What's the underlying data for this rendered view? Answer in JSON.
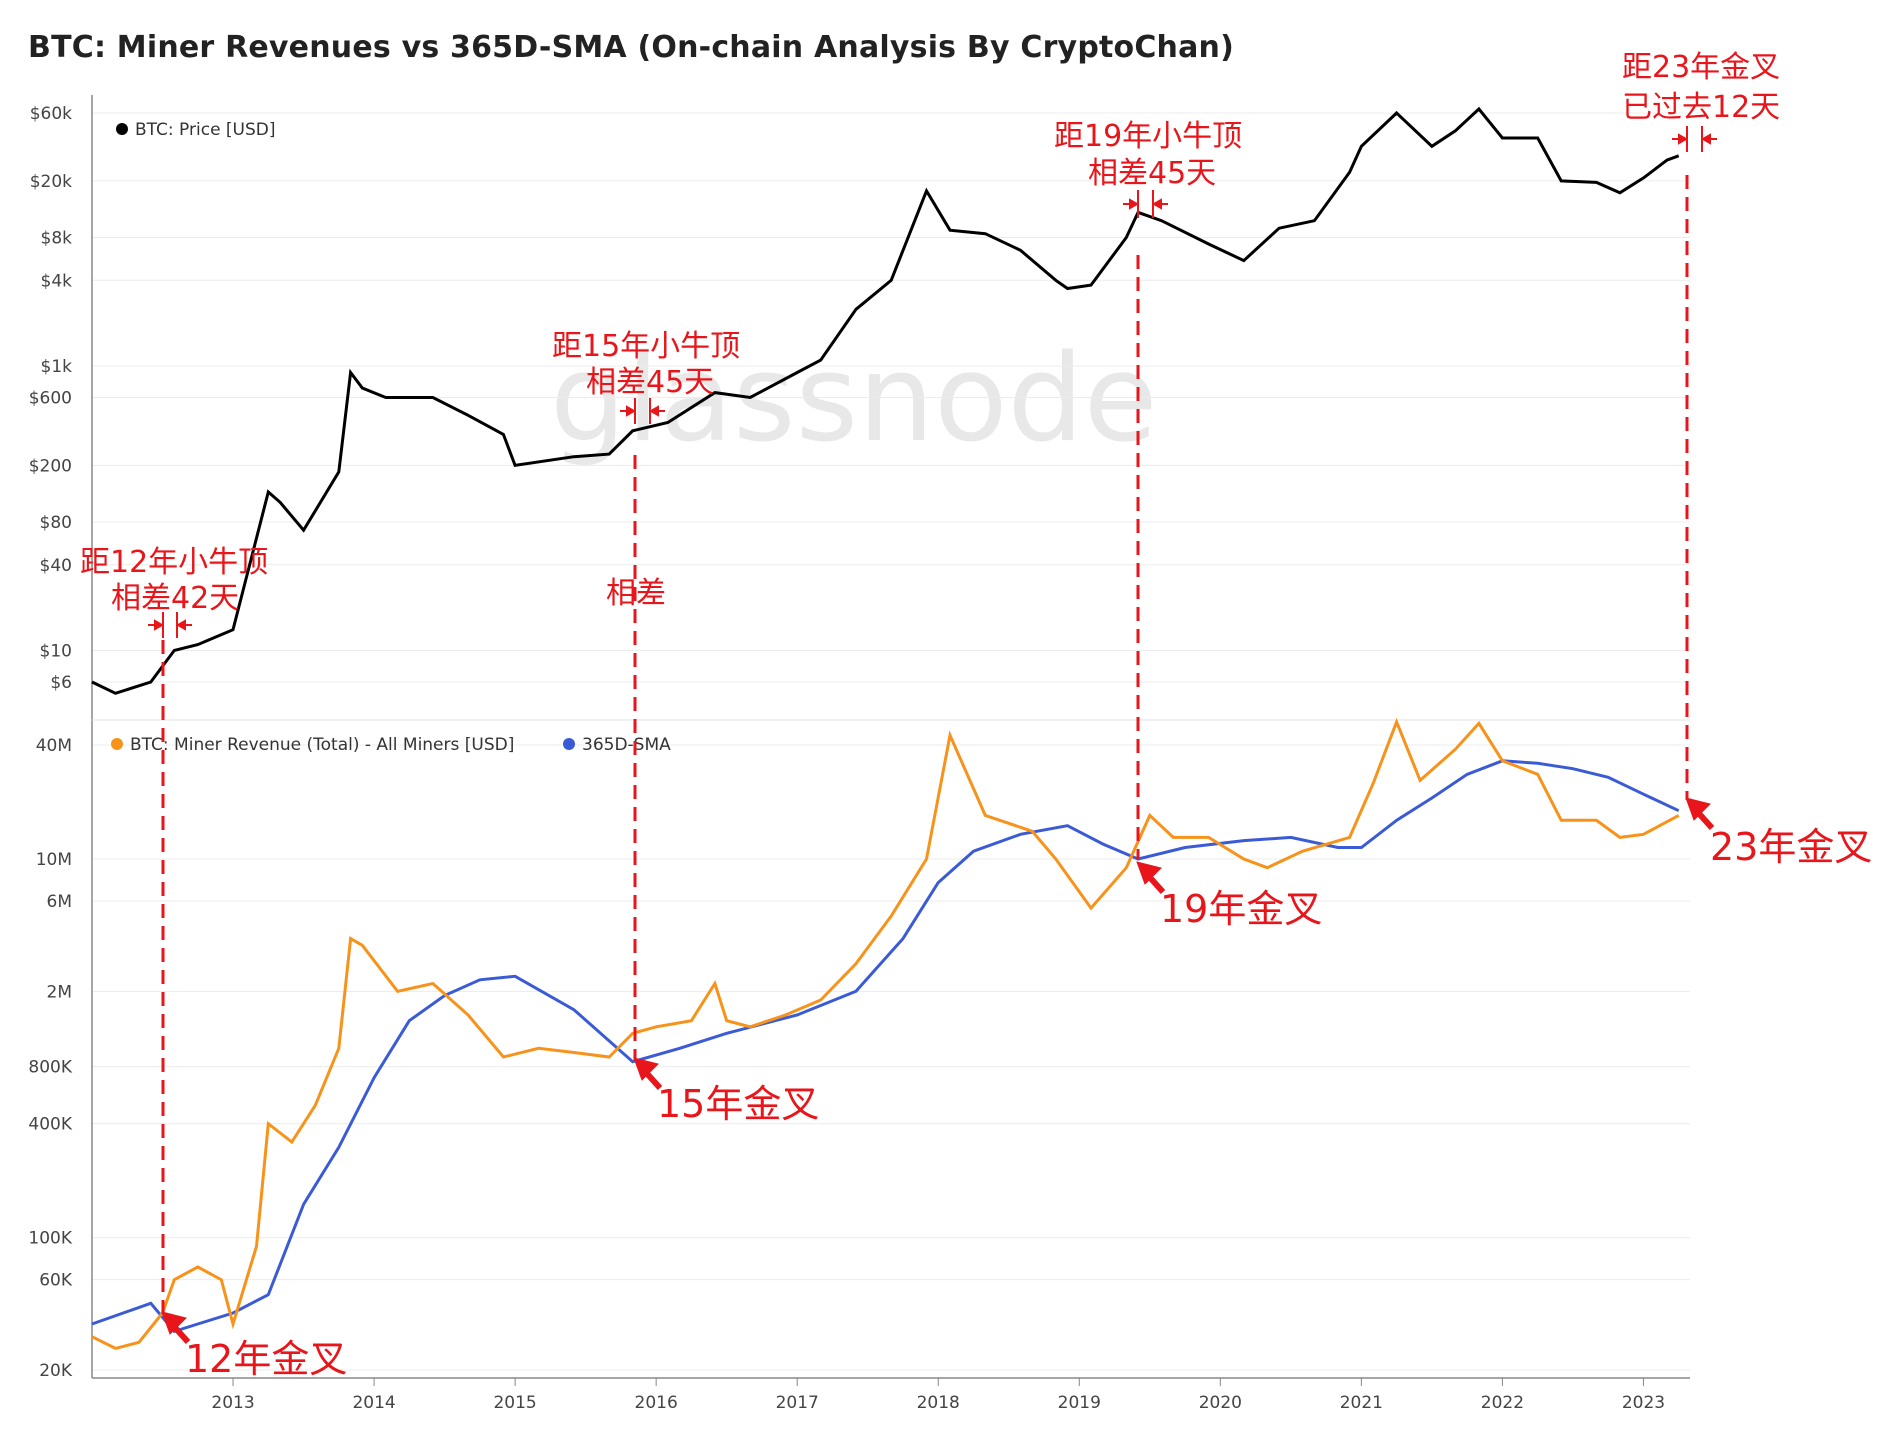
{
  "title": "BTC: Miner Revenues vs 365D-SMA (On-chain Analysis By CryptoChan)",
  "watermark": "glassnode",
  "colors": {
    "price": "#000000",
    "revenue": "#f7931a",
    "sma": "#3b5bd6",
    "annotation": "#e8161b",
    "grid": "#ececec"
  },
  "chart_data": [
    {
      "type": "line",
      "scale": "log",
      "title": "",
      "legend": [
        "BTC: Price [USD]"
      ],
      "y_ticks": [
        "$60k",
        "$20k",
        "$8k",
        "$4k",
        "$1k",
        "$600",
        "$200",
        "$80",
        "$40",
        "$10",
        "$6"
      ],
      "series": [
        {
          "name": "BTC: Price [USD]",
          "x": [
            "2012-01",
            "2012-03",
            "2012-06",
            "2012-08",
            "2012-10",
            "2013-01",
            "2013-04",
            "2013-05",
            "2013-07",
            "2013-10",
            "2013-11",
            "2013-12",
            "2014-02",
            "2014-06",
            "2014-09",
            "2014-12",
            "2015-01",
            "2015-06",
            "2015-09",
            "2015-11",
            "2016-02",
            "2016-06",
            "2016-09",
            "2017-01",
            "2017-03",
            "2017-06",
            "2017-09",
            "2017-12",
            "2018-02",
            "2018-05",
            "2018-08",
            "2018-11",
            "2018-12",
            "2019-02",
            "2019-05",
            "2019-06",
            "2019-08",
            "2019-12",
            "2020-03",
            "2020-06",
            "2020-09",
            "2020-12",
            "2021-01",
            "2021-04",
            "2021-07",
            "2021-09",
            "2021-11",
            "2022-01",
            "2022-04",
            "2022-06",
            "2022-09",
            "2022-11",
            "2023-01",
            "2023-03",
            "2023-04"
          ],
          "values": [
            6,
            5,
            6,
            10,
            11,
            14,
            130,
            110,
            70,
            180,
            900,
            700,
            600,
            600,
            450,
            330,
            200,
            230,
            240,
            350,
            400,
            650,
            600,
            900,
            1100,
            2500,
            4000,
            17000,
            9000,
            8500,
            6500,
            4000,
            3500,
            3700,
            8000,
            12000,
            10500,
            7200,
            5500,
            9300,
            10500,
            23000,
            35000,
            60000,
            35000,
            45000,
            64000,
            40000,
            40000,
            20000,
            19500,
            16500,
            21000,
            28000,
            30000
          ]
        }
      ]
    },
    {
      "type": "line",
      "scale": "log",
      "title": "",
      "legend": [
        "BTC: Miner Revenue (Total) - All Miners [USD]",
        "365D-SMA"
      ],
      "y_ticks": [
        "40M",
        "10M",
        "6M",
        "2M",
        "800K",
        "400K",
        "100K",
        "60K",
        "20K"
      ],
      "x_ticks": [
        "2013",
        "2014",
        "2015",
        "2016",
        "2017",
        "2018",
        "2019",
        "2020",
        "2021",
        "2022",
        "2023"
      ],
      "series": [
        {
          "name": "BTC: Miner Revenue (Total) - All Miners [USD]",
          "x": [
            "2012-01",
            "2012-03",
            "2012-05",
            "2012-07",
            "2012-08",
            "2012-10",
            "2012-12",
            "2013-01",
            "2013-03",
            "2013-04",
            "2013-06",
            "2013-08",
            "2013-10",
            "2013-11",
            "2013-12",
            "2014-03",
            "2014-06",
            "2014-09",
            "2014-12",
            "2015-03",
            "2015-06",
            "2015-09",
            "2015-11",
            "2016-01",
            "2016-04",
            "2016-06",
            "2016-07",
            "2016-09",
            "2016-12",
            "2017-03",
            "2017-06",
            "2017-09",
            "2017-12",
            "2018-02",
            "2018-05",
            "2018-09",
            "2018-11",
            "2019-02",
            "2019-05",
            "2019-07",
            "2019-09",
            "2019-12",
            "2020-03",
            "2020-05",
            "2020-08",
            "2020-12",
            "2021-02",
            "2021-04",
            "2021-06",
            "2021-09",
            "2021-11",
            "2022-01",
            "2022-04",
            "2022-06",
            "2022-09",
            "2022-11",
            "2023-01",
            "2023-04"
          ],
          "values": [
            30000,
            26000,
            28000,
            40000,
            60000,
            70000,
            60000,
            35000,
            90000,
            400000,
            320000,
            500000,
            1000000,
            3800000,
            3500000,
            2000000,
            2200000,
            1500000,
            900000,
            1000000,
            950000,
            900000,
            1200000,
            1300000,
            1400000,
            2200000,
            1400000,
            1300000,
            1500000,
            1800000,
            2800000,
            5000000,
            10000000,
            45000000,
            17000000,
            14000000,
            10000000,
            5500000,
            9000000,
            17000000,
            13000000,
            13000000,
            10000000,
            9000000,
            11000000,
            13000000,
            25000000,
            53000000,
            26000000,
            38000000,
            52000000,
            33000000,
            28000000,
            16000000,
            16000000,
            13000000,
            13500000,
            17000000
          ]
        },
        {
          "name": "365D-SMA",
          "x": [
            "2012-01",
            "2012-06",
            "2012-08",
            "2012-10",
            "2013-01",
            "2013-04",
            "2013-07",
            "2013-10",
            "2014-01",
            "2014-04",
            "2014-07",
            "2014-10",
            "2015-01",
            "2015-06",
            "2015-11",
            "2016-03",
            "2016-07",
            "2017-01",
            "2017-06",
            "2017-10",
            "2018-01",
            "2018-04",
            "2018-08",
            "2018-12",
            "2019-03",
            "2019-06",
            "2019-10",
            "2020-03",
            "2020-07",
            "2020-11",
            "2021-01",
            "2021-04",
            "2021-07",
            "2021-10",
            "2022-01",
            "2022-04",
            "2022-07",
            "2022-10",
            "2023-01",
            "2023-04"
          ],
          "values": [
            35000,
            45000,
            32000,
            35000,
            40000,
            50000,
            150000,
            300000,
            700000,
            1400000,
            1900000,
            2300000,
            2400000,
            1600000,
            850000,
            1000000,
            1200000,
            1500000,
            2000000,
            3800000,
            7500000,
            11000000,
            13500000,
            15000000,
            12000000,
            10000000,
            11500000,
            12500000,
            13000000,
            11500000,
            11500000,
            16000000,
            21000000,
            28000000,
            33000000,
            32000000,
            30000000,
            27000000,
            22000000,
            18000000
          ]
        }
      ]
    }
  ],
  "annotations": {
    "a12_top": "距12年小牛顶",
    "a12_diff": "相差42天",
    "a15_top": "距15年小牛顶",
    "a15_diff": "相差45天",
    "a15_mid": "相差",
    "a19_top": "距19年小牛顶",
    "a19_diff": "相差45天",
    "a23_top": "距23年金叉",
    "a23_diff": "已过去12天",
    "x12": "12年金叉",
    "x15": "15年金叉",
    "x19": "19年金叉",
    "x23": "23年金叉"
  }
}
